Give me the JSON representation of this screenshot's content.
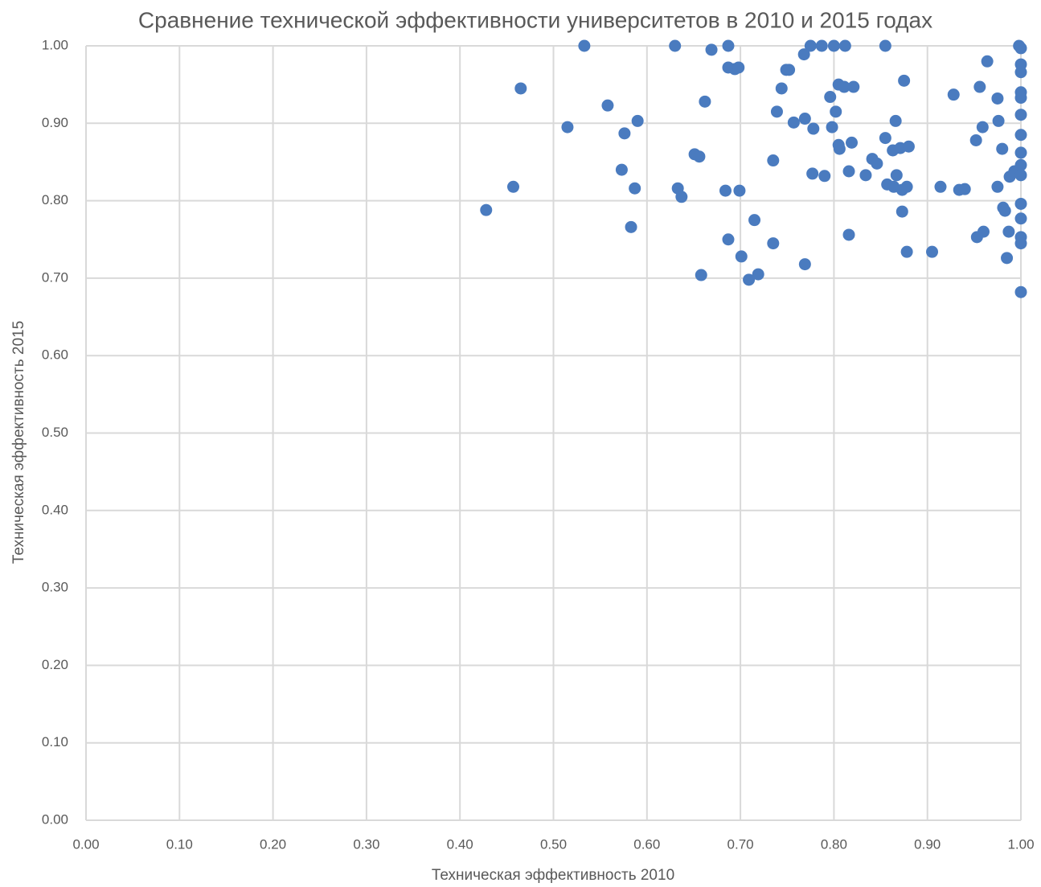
{
  "chart_data": {
    "type": "scatter",
    "title": "Сравнение технической эффективности университетов в 2010 и 2015 годах",
    "x_label": "Техническая эффективность 2010",
    "y_label": "Техническая эффективность 2015",
    "color": "#4a7bbf",
    "grid": true,
    "xlim": [
      0,
      1
    ],
    "ylim": [
      0,
      1
    ],
    "xticks": [
      {
        "value": 0,
        "label": "0.00"
      },
      {
        "value": 0.1,
        "label": "0.10"
      },
      {
        "value": 0.2,
        "label": "0.20"
      },
      {
        "value": 0.3,
        "label": "0.30"
      },
      {
        "value": 0.4,
        "label": "0.40"
      },
      {
        "value": 0.5,
        "label": "0.50"
      },
      {
        "value": 0.6,
        "label": "0.60"
      },
      {
        "value": 0.7,
        "label": "0.70"
      },
      {
        "value": 0.8,
        "label": "0.80"
      },
      {
        "value": 0.9,
        "label": "0.90"
      },
      {
        "value": 1,
        "label": "1.00"
      }
    ],
    "yticks": [
      {
        "value": 0,
        "label": "0.00"
      },
      {
        "value": 0.1,
        "label": "0.10"
      },
      {
        "value": 0.2,
        "label": "0.20"
      },
      {
        "value": 0.3,
        "label": "0.30"
      },
      {
        "value": 0.4,
        "label": "0.40"
      },
      {
        "value": 0.5,
        "label": "0.50"
      },
      {
        "value": 0.6,
        "label": "0.60"
      },
      {
        "value": 0.7,
        "label": "0.70"
      },
      {
        "value": 0.8,
        "label": "0.80"
      },
      {
        "value": 0.9,
        "label": "0.90"
      },
      {
        "value": 1,
        "label": "1.00"
      }
    ],
    "x": [
      0.533,
      0.63,
      0.687,
      0.775,
      0.787,
      0.8,
      0.812,
      0.855,
      0.998,
      1.0,
      0.669,
      0.687,
      0.694,
      0.698,
      0.749,
      0.752,
      0.768,
      0.964,
      1.0,
      1.0,
      0.465,
      0.744,
      0.805,
      0.811,
      0.821,
      0.875,
      0.956,
      1.0,
      1.0,
      0.558,
      0.662,
      0.796,
      0.928,
      0.975,
      0.739,
      0.802,
      1.0,
      0.515,
      0.59,
      0.576,
      0.757,
      0.769,
      0.778,
      0.798,
      0.866,
      0.976,
      0.959,
      1.0,
      0.952,
      0.805,
      0.806,
      0.819,
      0.855,
      0.863,
      0.871,
      0.88,
      0.98,
      1.0,
      0.651,
      0.656,
      0.735,
      0.841,
      0.846,
      0.573,
      0.777,
      0.79,
      0.816,
      0.834,
      0.867,
      0.993,
      0.988,
      1.0,
      1.0,
      0.857,
      0.864,
      0.873,
      0.878,
      0.914,
      0.934,
      0.94,
      0.975,
      0.457,
      0.587,
      0.633,
      0.637,
      0.684,
      0.699,
      0.428,
      0.583,
      1.0,
      0.981,
      0.983,
      0.873,
      0.715,
      1.0,
      0.816,
      0.96,
      0.953,
      0.987,
      1.0,
      1.0,
      0.687,
      0.735,
      0.878,
      0.905,
      0.701,
      0.985,
      0.769,
      0.658,
      0.709,
      0.719,
      1.0
    ],
    "values": [
      1.0,
      1.0,
      1.0,
      1.0,
      1.0,
      1.0,
      1.0,
      1.0,
      1.0,
      0.997,
      0.995,
      0.972,
      0.97,
      0.972,
      0.969,
      0.969,
      0.989,
      0.98,
      0.976,
      0.966,
      0.945,
      0.945,
      0.95,
      0.947,
      0.947,
      0.955,
      0.947,
      0.94,
      0.933,
      0.923,
      0.928,
      0.934,
      0.937,
      0.932,
      0.915,
      0.915,
      0.911,
      0.895,
      0.903,
      0.887,
      0.901,
      0.906,
      0.893,
      0.895,
      0.903,
      0.903,
      0.895,
      0.885,
      0.878,
      0.872,
      0.867,
      0.875,
      0.881,
      0.865,
      0.868,
      0.87,
      0.867,
      0.862,
      0.86,
      0.857,
      0.852,
      0.854,
      0.848,
      0.84,
      0.835,
      0.832,
      0.838,
      0.833,
      0.833,
      0.838,
      0.831,
      0.846,
      0.833,
      0.821,
      0.818,
      0.814,
      0.818,
      0.818,
      0.814,
      0.815,
      0.818,
      0.818,
      0.816,
      0.816,
      0.805,
      0.813,
      0.813,
      0.788,
      0.766,
      0.796,
      0.791,
      0.787,
      0.786,
      0.775,
      0.777,
      0.756,
      0.76,
      0.753,
      0.76,
      0.753,
      0.745,
      0.75,
      0.745,
      0.734,
      0.734,
      0.728,
      0.726,
      0.718,
      0.704,
      0.698,
      0.705,
      0.682
    ]
  }
}
